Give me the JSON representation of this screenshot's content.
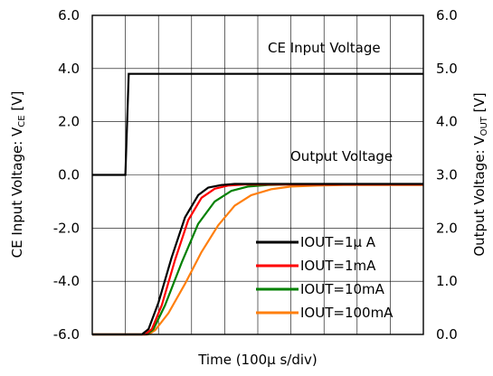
{
  "chart_data": {
    "type": "line",
    "xlabel": "Time (100μ s/div)",
    "ylabel_left": "CE Input Voltage: V_CE [V]",
    "ylabel_left_main": "CE Input Voltage: V",
    "ylabel_left_sub": "CE",
    "ylabel_left_unit": " [V]",
    "ylabel_right": "Output Voltage: V_OUT [V]",
    "ylabel_right_main": "Output Voltage: V",
    "ylabel_right_sub": "OUT",
    "ylabel_right_unit": " [V]",
    "x_divisions": 10,
    "xlim": [
      0,
      1000
    ],
    "ylim_left": [
      -6.0,
      6.0
    ],
    "ylim_right": [
      0.0,
      6.0
    ],
    "yticks_left": [
      "-6.0",
      "-4.0",
      "-2.0",
      "0.0",
      "2.0",
      "4.0",
      "6.0"
    ],
    "yticks_right": [
      "0.0",
      "1.0",
      "2.0",
      "3.0",
      "4.0",
      "5.0",
      "6.0"
    ],
    "grid": true,
    "annotations": [
      "CE Input Voltage",
      "Output Voltage"
    ],
    "legend_position": "bottom-right",
    "ce_input": {
      "name": "CE Input Voltage",
      "axis": "left",
      "color": "#000000",
      "x": [
        0,
        100,
        110,
        1000
      ],
      "y": [
        0.0,
        0.0,
        3.8,
        3.8
      ]
    },
    "series": [
      {
        "name": "IOUT=1μ A",
        "axis": "right",
        "color": "#000000",
        "x": [
          0,
          150,
          170,
          200,
          240,
          280,
          320,
          350,
          390,
          430,
          500,
          700,
          1000
        ],
        "y": [
          0.0,
          0.0,
          0.1,
          0.6,
          1.45,
          2.2,
          2.62,
          2.76,
          2.81,
          2.83,
          2.83,
          2.83,
          2.83
        ]
      },
      {
        "name": "IOUT=1mA",
        "axis": "right",
        "color": "#ff0000",
        "x": [
          0,
          160,
          180,
          210,
          250,
          290,
          330,
          370,
          410,
          460,
          520,
          700,
          1000
        ],
        "y": [
          0.0,
          0.0,
          0.1,
          0.55,
          1.4,
          2.15,
          2.57,
          2.74,
          2.8,
          2.82,
          2.82,
          2.82,
          2.82
        ]
      },
      {
        "name": "IOUT=10mA",
        "axis": "right",
        "color": "#008000",
        "x": [
          0,
          165,
          185,
          220,
          270,
          320,
          370,
          420,
          470,
          530,
          600,
          800,
          1000
        ],
        "y": [
          0.0,
          0.0,
          0.1,
          0.55,
          1.35,
          2.08,
          2.5,
          2.7,
          2.78,
          2.81,
          2.82,
          2.82,
          2.82
        ]
      },
      {
        "name": "IOUT=100mA",
        "axis": "right",
        "color": "#ff7f0e",
        "x": [
          0,
          170,
          190,
          230,
          280,
          330,
          380,
          430,
          480,
          540,
          600,
          680,
          760,
          850,
          1000
        ],
        "y": [
          0.0,
          0.0,
          0.08,
          0.4,
          0.95,
          1.55,
          2.05,
          2.42,
          2.62,
          2.73,
          2.78,
          2.8,
          2.81,
          2.81,
          2.81
        ]
      }
    ]
  }
}
